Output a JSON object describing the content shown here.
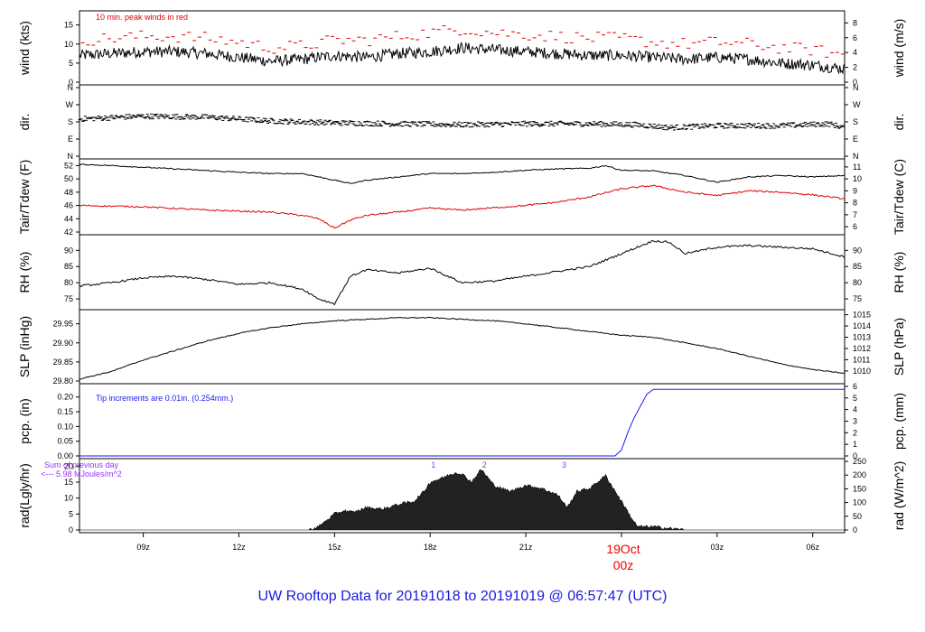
{
  "title": "UW Rooftop Data for 20191018  to  20191019 @ 06:57:47  (UTC)",
  "colors": {
    "peak": "#e00000",
    "dew": "#e00000",
    "precip": "#1a1aff",
    "note_blue": "#1a1aff",
    "note_purple": "#9b30ff",
    "title": "#1a1adf"
  },
  "chart_data": {
    "type": "line",
    "x_axis": {
      "unit": "hours UTC since 2019-10-18 06:57",
      "range": [
        7,
        31
      ],
      "tick_hours": [
        9,
        12,
        15,
        18,
        21,
        27,
        30
      ],
      "tick_labels": [
        "09z",
        "12z",
        "15z",
        "18z",
        "21z",
        "03z",
        "06z"
      ],
      "date_marker": {
        "hour": 24,
        "label1": "19Oct",
        "label2": "00z"
      }
    },
    "panels": [
      {
        "key": "wind",
        "left_label": "wind (kts)",
        "right_label": "wind (m/s)",
        "ylim": [
          0,
          18
        ],
        "left_ticks": [
          0,
          5,
          10,
          15
        ],
        "left_tick_labels": [
          "0",
          "5",
          "10",
          "15"
        ],
        "right_ticks": [
          0,
          3.89,
          7.78,
          11.66,
          15.55
        ],
        "right_tick_labels": [
          "0",
          "2",
          "4",
          "6",
          "8"
        ],
        "note": "10 min. peak winds in red",
        "series": [
          {
            "style": "noisy",
            "color": "#000",
            "amp": 1.5,
            "x": [
              7,
              8,
              9,
              10,
              11,
              12,
              13,
              14,
              15,
              16,
              17,
              18,
              19,
              20,
              21,
              22,
              23,
              24,
              25,
              26,
              27,
              28,
              29,
              30,
              31
            ],
            "y": [
              7,
              7.5,
              8,
              8,
              7.5,
              6.5,
              5.5,
              6,
              7,
              6.5,
              7.5,
              8,
              9,
              8.5,
              8,
              7.5,
              7,
              7,
              6.5,
              6,
              6.5,
              6,
              5,
              4.5,
              3.5
            ]
          },
          {
            "style": "dashes",
            "color": "#e00000",
            "x": [
              7,
              8,
              9,
              10,
              11,
              12,
              13,
              14,
              15,
              16,
              17,
              18,
              19,
              20,
              21,
              22,
              23,
              24,
              25,
              26,
              27,
              28,
              29,
              30,
              31
            ],
            "y": [
              11,
              11.5,
              12,
              12,
              11.5,
              10.5,
              9,
              9.5,
              11,
              11,
              12,
              13,
              14,
              13,
              12.5,
              12,
              11.5,
              11.5,
              10.5,
              10,
              10.5,
              10,
              9,
              8.5,
              7
            ]
          }
        ]
      },
      {
        "key": "dir",
        "left_label": "dir.",
        "right_label": "dir.",
        "ylim": [
          0,
          360
        ],
        "left_ticks": [
          0,
          90,
          180,
          270,
          360
        ],
        "left_tick_labels": [
          "N",
          "E",
          "S",
          "W",
          "N"
        ],
        "right_ticks": [
          0,
          90,
          180,
          270,
          360
        ],
        "right_tick_labels": [
          "N",
          "E",
          "S",
          "W",
          "N"
        ],
        "series": [
          {
            "style": "dots",
            "color": "#000",
            "amp": 14,
            "x": [
              7,
              9,
              11,
              13,
              15,
              17,
              19,
              21,
              23,
              24.5,
              25.5,
              27,
              29,
              30.5,
              31
            ],
            "y": [
              195,
              210,
              205,
              185,
              175,
              170,
              165,
              170,
              170,
              165,
              150,
              160,
              160,
              170,
              150
            ]
          }
        ]
      },
      {
        "key": "temp",
        "left_label": "Tair/Tdew (F)",
        "right_label": "Tair/Tdew (C)",
        "ylim": [
          42,
          52.6
        ],
        "left_ticks": [
          42,
          44,
          46,
          48,
          50,
          52
        ],
        "left_tick_labels": [
          "42",
          "44",
          "46",
          "48",
          "50",
          "52"
        ],
        "right_ticks": [
          42.8,
          44.6,
          46.4,
          48.2,
          50,
          51.8
        ],
        "right_tick_labels": [
          "6",
          "7",
          "8",
          "9",
          "10",
          "11"
        ],
        "series": [
          {
            "style": "line",
            "color": "#000",
            "amp": 0.08,
            "x": [
              7,
              8,
              10,
              12,
              13,
              14,
              15,
              15.5,
              16,
              17,
              18,
              19,
              20,
              21,
              22,
              23,
              23.5,
              24,
              25,
              26,
              27,
              28,
              29,
              30,
              31
            ],
            "y": [
              52.2,
              52,
              51.5,
              51,
              50.8,
              50.8,
              49.8,
              49.3,
              49.8,
              50.3,
              50.8,
              50.8,
              51,
              51.3,
              51.5,
              51.6,
              52,
              51.3,
              51.2,
              50.5,
              49.5,
              50.3,
              50.5,
              50.3,
              50.5
            ]
          },
          {
            "style": "line",
            "color": "#e00000",
            "amp": 0.12,
            "x": [
              7,
              9,
              11,
              13,
              14,
              14.5,
              15,
              15.5,
              16,
              17,
              18,
              19,
              21,
              22,
              23,
              24,
              25,
              26,
              27,
              28,
              29,
              30,
              31
            ],
            "y": [
              46,
              45.8,
              45.3,
              45,
              44.5,
              44,
              42.6,
              43.8,
              44.5,
              45,
              45.6,
              45.3,
              46,
              46.5,
              47.3,
              48.5,
              49,
              48,
              47.5,
              48.2,
              48,
              47.6,
              47
            ]
          }
        ]
      },
      {
        "key": "rh",
        "left_label": "RH (%)",
        "right_label": "RH (%)",
        "ylim": [
          72.5,
          94
        ],
        "left_ticks": [
          75,
          80,
          85,
          90
        ],
        "left_tick_labels": [
          "75",
          "80",
          "85",
          "90"
        ],
        "right_ticks": [
          75,
          80,
          85,
          90
        ],
        "right_tick_labels": [
          "75",
          "80",
          "85",
          "90"
        ],
        "series": [
          {
            "style": "line",
            "color": "#000",
            "amp": 0.3,
            "x": [
              7,
              8,
              9,
              10,
              11,
              12,
              13,
              14,
              14.5,
              15,
              15.5,
              16,
              17,
              18,
              19,
              20,
              21,
              22,
              23,
              24,
              25,
              25.5,
              26,
              27,
              28,
              29,
              30,
              31
            ],
            "y": [
              79,
              80,
              81.5,
              82,
              81,
              79.5,
              80,
              78,
              75,
              73.5,
              82,
              84,
              83,
              84.5,
              80,
              80.5,
              82,
              83.5,
              85,
              89,
              93,
              92.5,
              89,
              91,
              91.5,
              91,
              90.5,
              88
            ]
          }
        ]
      },
      {
        "key": "slp",
        "left_label": "SLP (inHg)",
        "right_label": "SLP (hPa)",
        "ylim": [
          29.8,
          29.98
        ],
        "left_ticks": [
          29.8,
          29.85,
          29.9,
          29.95
        ],
        "left_tick_labels": [
          "29.80",
          "29.85",
          "29.90",
          "29.95"
        ],
        "right_ticks": [
          29.8263,
          29.8558,
          29.8853,
          29.9149,
          29.9444,
          29.9739
        ],
        "right_tick_labels": [
          "1010",
          "1011",
          "1012",
          "1013",
          "1014",
          "1015"
        ],
        "series": [
          {
            "style": "line",
            "color": "#000",
            "amp": 0.0012,
            "x": [
              7,
              8,
              9,
              10,
              11,
              12,
              13,
              14,
              15,
              16,
              17,
              18,
              19,
              20,
              21,
              22,
              23,
              24,
              25,
              26,
              27,
              28,
              29,
              30,
              31
            ],
            "y": [
              29.805,
              29.825,
              29.855,
              29.88,
              29.905,
              29.925,
              29.94,
              29.95,
              29.958,
              29.962,
              29.966,
              29.966,
              29.962,
              29.958,
              29.95,
              29.94,
              29.93,
              29.92,
              29.915,
              29.9,
              29.885,
              29.865,
              29.845,
              29.83,
              29.82
            ]
          }
        ]
      },
      {
        "key": "pcp",
        "left_label": "pcp. (in)",
        "right_label": "pcp. (mm)",
        "ylim": [
          0,
          0.236
        ],
        "left_ticks": [
          0,
          0.05,
          0.1,
          0.15,
          0.2
        ],
        "left_tick_labels": [
          "0.00",
          "0.05",
          "0.10",
          "0.15",
          "0.20"
        ],
        "right_ticks": [
          0,
          0.0394,
          0.0787,
          0.1181,
          0.1575,
          0.1969,
          0.2362
        ],
        "right_tick_labels": [
          "0",
          "1",
          "2",
          "3",
          "4",
          "5",
          "6"
        ],
        "note": "Tip increments are 0.01in. (0.254mm.)",
        "series": [
          {
            "style": "line",
            "color": "#1a1aff",
            "amp": 0,
            "x": [
              7,
              23.8,
              24.0,
              24.2,
              24.4,
              24.6,
              24.8,
              25.0,
              31
            ],
            "y": [
              0,
              0,
              0.02,
              0.08,
              0.13,
              0.17,
              0.21,
              0.226,
              0.226
            ]
          }
        ]
      },
      {
        "key": "rad",
        "left_label": "rad(Lgly/hr)",
        "right_label": "rad (W/m^2)",
        "ylim": [
          0,
          21.5
        ],
        "left_ticks": [
          0,
          5,
          10,
          15,
          20
        ],
        "left_tick_labels": [
          "0",
          "5",
          "10",
          "15",
          "20"
        ],
        "right_ticks": [
          0,
          4.3,
          8.6,
          12.9,
          17.2,
          21.5
        ],
        "right_tick_labels": [
          "0",
          "50",
          "100",
          "150",
          "200",
          "250"
        ],
        "note_sum_line1": "Sum of previous day",
        "note_sum_line2": "<--- 5.98 MJoules/m^2",
        "markers": [
          {
            "x": 18.1,
            "label": "1"
          },
          {
            "x": 19.7,
            "label": "2"
          },
          {
            "x": 22.2,
            "label": "3"
          }
        ],
        "series": [
          {
            "style": "area",
            "color": "#000",
            "amp": 0.5,
            "x": [
              7,
              14.2,
              14.5,
              15,
              15.3,
              15.6,
              16,
              16.5,
              17,
              17.5,
              17.8,
              18,
              18.3,
              18.8,
              19,
              19.3,
              19.6,
              20,
              20.5,
              21,
              21.5,
              22,
              22.3,
              22.6,
              23,
              23.5,
              24,
              24.3,
              24.5,
              25,
              25.5,
              26,
              31
            ],
            "y": [
              0,
              0,
              1,
              5,
              6,
              5.5,
              7,
              6.5,
              8,
              9,
              12,
              15,
              16,
              18,
              17.5,
              15,
              19,
              14,
              12,
              14,
              13,
              11,
              7,
              12,
              13,
              17,
              9,
              4,
              1,
              1,
              0.5,
              0,
              0
            ]
          }
        ]
      }
    ]
  }
}
